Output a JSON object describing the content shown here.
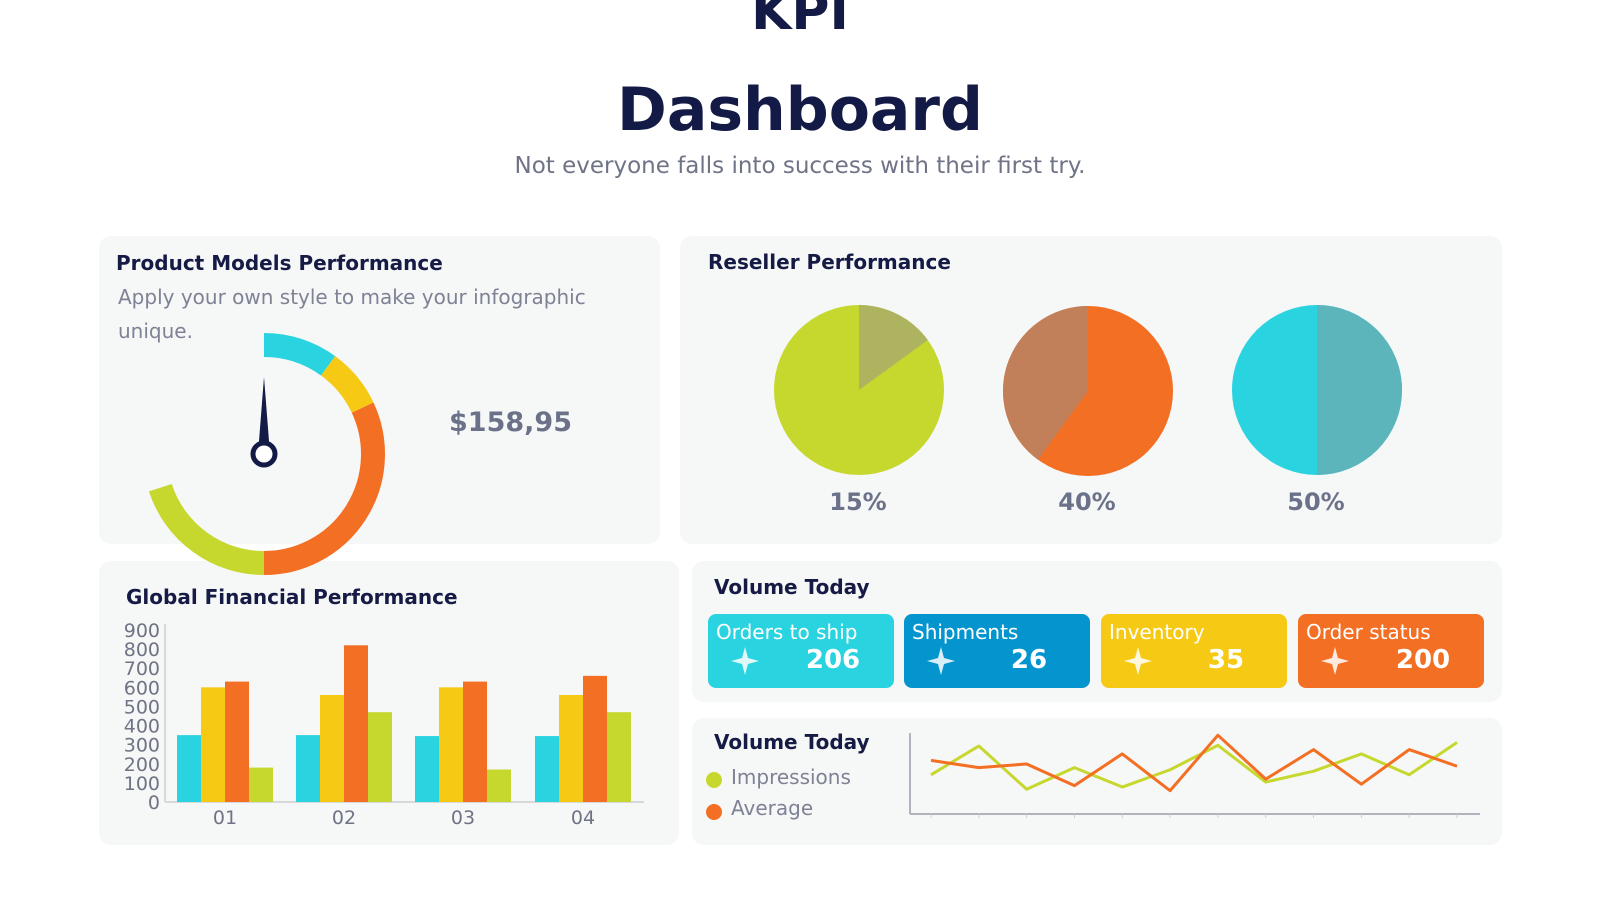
{
  "header": {
    "title_line1": "KPI",
    "title_line2": "Dashboard",
    "subtitle": "Not everyone falls into success with their first try."
  },
  "product_models": {
    "title": "Product Models Performance",
    "description": "Apply your own style to make your infographic unique.",
    "value": "$158,95"
  },
  "reseller": {
    "title": "Reseller Performance",
    "labels": [
      "15%",
      "40%",
      "50%"
    ]
  },
  "global_financial": {
    "title": "Global Financial Performance"
  },
  "volume_today": {
    "title": "Volume Today",
    "cards": [
      {
        "label": "Orders to ship",
        "value": "206",
        "color": "#29d3e0"
      },
      {
        "label": "Shipments",
        "value": "26",
        "color": "#0495cf"
      },
      {
        "label": "Inventory",
        "value": "35",
        "color": "#f6c915"
      },
      {
        "label": "Order status",
        "value": "200",
        "color": "#f36f24"
      }
    ]
  },
  "volume_chart": {
    "title": "Volume Today",
    "legend": [
      {
        "label": "Impressions",
        "color": "#c6d82e"
      },
      {
        "label": "Average",
        "color": "#f36f24"
      }
    ]
  },
  "colors": {
    "navy": "#131a45",
    "cyan": "#29d3e0",
    "yellow": "#f6c915",
    "orange": "#f36f24",
    "lime": "#c6d82e",
    "blue": "#0495cf"
  },
  "chart_data": [
    {
      "type": "gauge",
      "segments": [
        {
          "color": "#29d3e0",
          "fraction": 0.1
        },
        {
          "color": "#f6c915",
          "fraction": 0.08
        },
        {
          "color": "#f36f24",
          "fraction": 0.32
        },
        {
          "color": "#c6d82e",
          "fraction": 0.2
        }
      ],
      "needle_fraction": 0.0,
      "value": 158.95
    },
    {
      "type": "pie",
      "pies": [
        {
          "label": "15%",
          "value": 15,
          "base_color": "#c6d82e",
          "slice_color": "#adb35f"
        },
        {
          "label": "40%",
          "value": 40,
          "base_color": "#f36f24",
          "slice_color": "#c17f5a"
        },
        {
          "label": "50%",
          "value": 50,
          "base_color": "#29d3e0",
          "slice_color": "#5db5bc"
        }
      ]
    },
    {
      "type": "bar",
      "categories": [
        "01",
        "02",
        "03",
        "04"
      ],
      "ylim": [
        0,
        900
      ],
      "yticks": [
        0,
        100,
        200,
        300,
        400,
        500,
        600,
        700,
        800,
        900
      ],
      "series": [
        {
          "color": "#29d3e0",
          "values": [
            350,
            350,
            345,
            345
          ]
        },
        {
          "color": "#f6c915",
          "values": [
            600,
            560,
            600,
            560
          ]
        },
        {
          "color": "#f36f24",
          "values": [
            630,
            820,
            630,
            660
          ]
        },
        {
          "color": "#c6d82e",
          "values": [
            180,
            470,
            170,
            470
          ]
        }
      ]
    },
    {
      "type": "line",
      "x": [
        0,
        1,
        2,
        3,
        4,
        5,
        6,
        7,
        8,
        9,
        10,
        11
      ],
      "ylim": [
        0,
        10
      ],
      "series": [
        {
          "name": "Impressions",
          "color": "#c6d82e",
          "values": [
            3.5,
            7.5,
            1.5,
            4.5,
            1.8,
            4.2,
            7.6,
            2.5,
            4.0,
            6.4,
            3.5,
            8.0
          ]
        },
        {
          "name": "Average",
          "color": "#f36f24",
          "values": [
            5.5,
            4.5,
            5.0,
            2.0,
            6.4,
            1.3,
            9.0,
            2.9,
            7.0,
            2.2,
            7.0,
            4.7
          ]
        }
      ]
    }
  ]
}
